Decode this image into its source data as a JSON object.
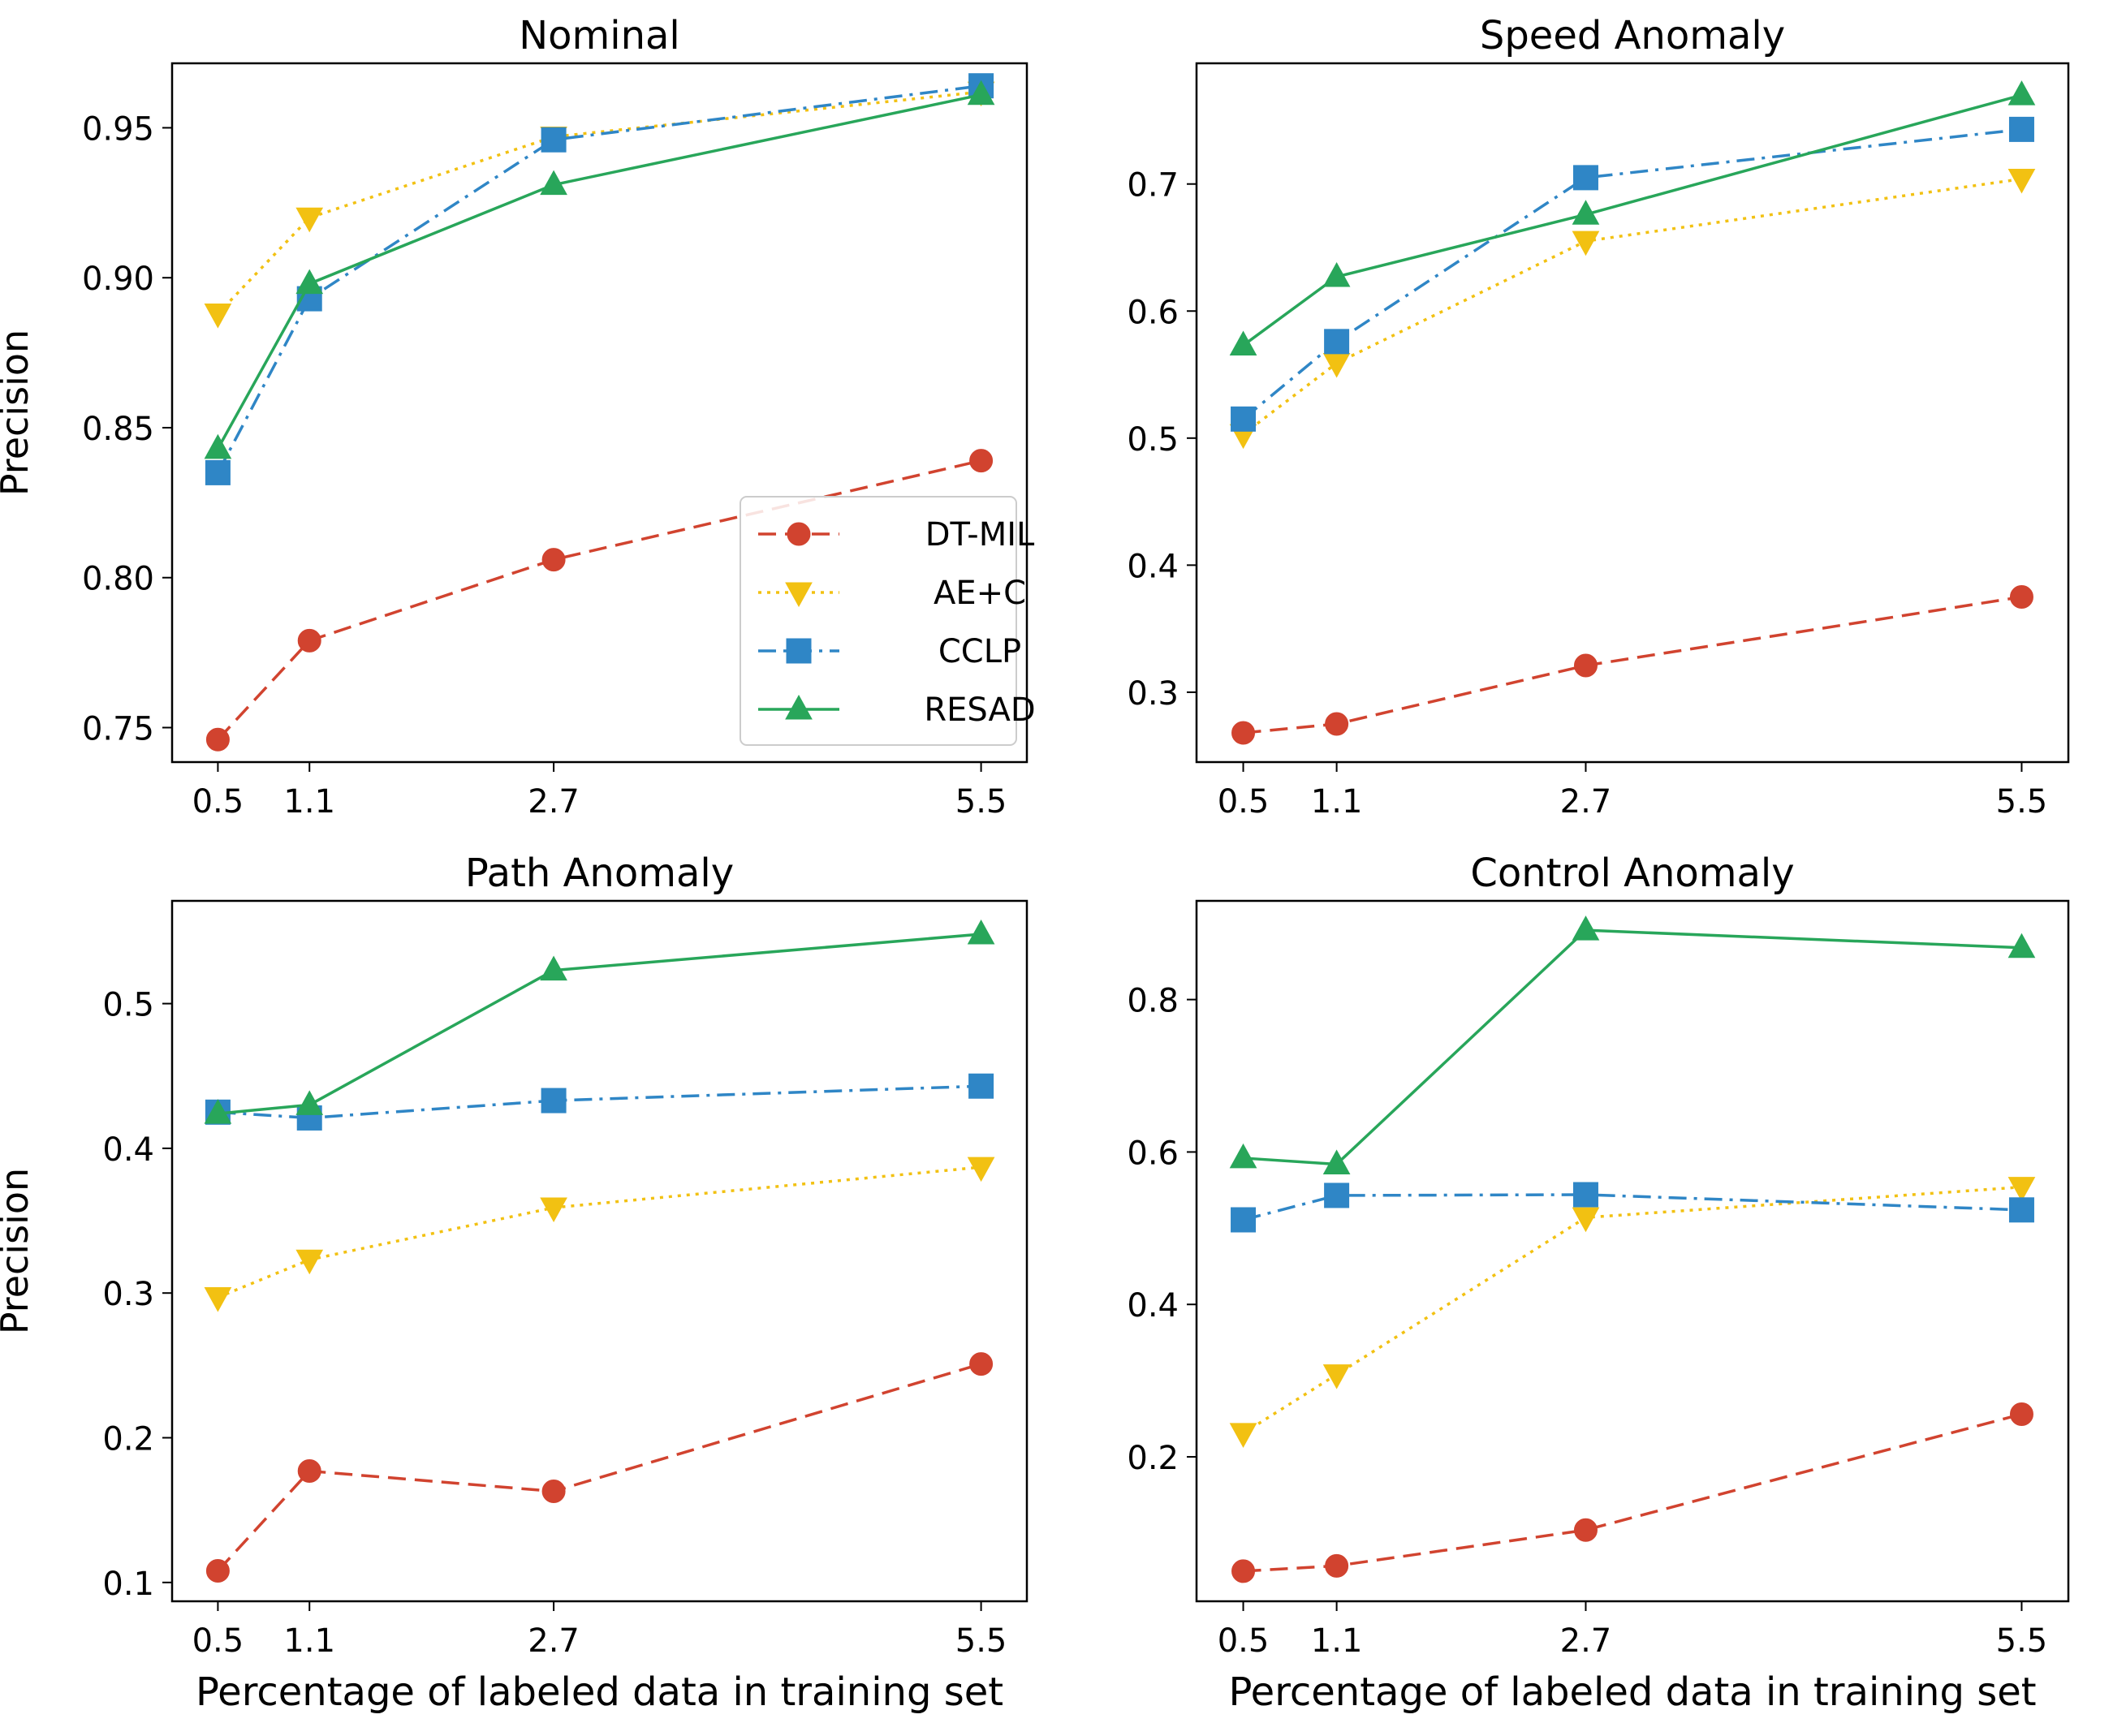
{
  "chart_data": [
    {
      "type": "line",
      "title": "Nominal",
      "xlabel": "",
      "ylabel": "Precision",
      "x": [
        0.5,
        1.1,
        2.7,
        5.5
      ],
      "xticklabels": [
        "0.5",
        "1.1",
        "2.7",
        "5.5"
      ],
      "xlim": [
        0.2,
        5.8
      ],
      "ylim": [
        0.7385,
        0.9715
      ],
      "yticks": [
        0.75,
        0.8,
        0.85,
        0.9,
        0.95
      ],
      "yticklabels": [
        "0.75",
        "0.80",
        "0.85",
        "0.90",
        "0.95"
      ],
      "legend": "lower-right",
      "series": [
        {
          "name": "DT-MIL",
          "values": [
            0.746,
            0.779,
            0.806,
            0.839
          ]
        },
        {
          "name": "AE+C",
          "values": [
            0.888,
            0.92,
            0.947,
            0.962
          ]
        },
        {
          "name": "CCLP",
          "values": [
            0.835,
            0.893,
            0.946,
            0.964
          ]
        },
        {
          "name": "RESAD",
          "values": [
            0.843,
            0.898,
            0.931,
            0.961
          ]
        }
      ]
    },
    {
      "type": "line",
      "title": "Speed Anomaly",
      "xlabel": "",
      "ylabel": "",
      "x": [
        0.5,
        1.1,
        2.7,
        5.5
      ],
      "xticklabels": [
        "0.5",
        "1.1",
        "2.7",
        "5.5"
      ],
      "xlim": [
        0.2,
        5.8
      ],
      "ylim": [
        0.245,
        0.795
      ],
      "yticks": [
        0.3,
        0.4,
        0.5,
        0.6,
        0.7
      ],
      "yticklabels": [
        "0.3",
        "0.4",
        "0.5",
        "0.6",
        "0.7"
      ],
      "series": [
        {
          "name": "DT-MIL",
          "values": [
            0.268,
            0.275,
            0.321,
            0.375
          ]
        },
        {
          "name": "AE+C",
          "values": [
            0.503,
            0.559,
            0.655,
            0.704
          ]
        },
        {
          "name": "CCLP",
          "values": [
            0.515,
            0.576,
            0.705,
            0.743
          ]
        },
        {
          "name": "RESAD",
          "values": [
            0.573,
            0.627,
            0.676,
            0.77
          ]
        }
      ]
    },
    {
      "type": "line",
      "title": "Path Anomaly",
      "xlabel": "Percentage of labeled data in training set",
      "ylabel": "Precision",
      "x": [
        0.5,
        1.1,
        2.7,
        5.5
      ],
      "xticklabels": [
        "0.5",
        "1.1",
        "2.7",
        "5.5"
      ],
      "xlim": [
        0.2,
        5.8
      ],
      "ylim": [
        0.087,
        0.571
      ],
      "yticks": [
        0.1,
        0.2,
        0.3,
        0.4,
        0.5
      ],
      "yticklabels": [
        "0.1",
        "0.2",
        "0.3",
        "0.4",
        "0.5"
      ],
      "series": [
        {
          "name": "DT-MIL",
          "values": [
            0.108,
            0.177,
            0.163,
            0.251
          ]
        },
        {
          "name": "AE+C",
          "values": [
            0.297,
            0.323,
            0.359,
            0.387
          ]
        },
        {
          "name": "CCLP",
          "values": [
            0.425,
            0.421,
            0.433,
            0.443
          ]
        },
        {
          "name": "RESAD",
          "values": [
            0.424,
            0.43,
            0.523,
            0.548
          ]
        }
      ]
    },
    {
      "type": "line",
      "title": "Control Anomaly",
      "xlabel": "Percentage of labeled data in training set",
      "ylabel": "",
      "x": [
        0.5,
        1.1,
        2.7,
        5.5
      ],
      "xticklabels": [
        "0.5",
        "1.1",
        "2.7",
        "5.5"
      ],
      "xlim": [
        0.2,
        5.8
      ],
      "ylim": [
        0.0105,
        0.9295
      ],
      "yticks": [
        0.2,
        0.4,
        0.6,
        0.8
      ],
      "yticklabels": [
        "0.2",
        "0.4",
        "0.6",
        "0.8"
      ],
      "series": [
        {
          "name": "DT-MIL",
          "values": [
            0.05,
            0.057,
            0.104,
            0.256
          ]
        },
        {
          "name": "AE+C",
          "values": [
            0.231,
            0.308,
            0.514,
            0.554
          ]
        },
        {
          "name": "CCLP",
          "values": [
            0.511,
            0.543,
            0.544,
            0.524
          ]
        },
        {
          "name": "RESAD",
          "values": [
            0.592,
            0.584,
            0.891,
            0.868
          ]
        }
      ]
    }
  ],
  "styles": {
    "DT-MIL": {
      "color": "#d1432f",
      "marker": "circle",
      "dash": "dashed"
    },
    "AE+C": {
      "color": "#f2c112",
      "marker": "triangle-down",
      "dash": "dotted"
    },
    "CCLP": {
      "color": "#2f86c6",
      "marker": "square",
      "dash": "dash-dot"
    },
    "RESAD": {
      "color": "#28a65a",
      "marker": "triangle-up",
      "dash": "solid"
    }
  }
}
